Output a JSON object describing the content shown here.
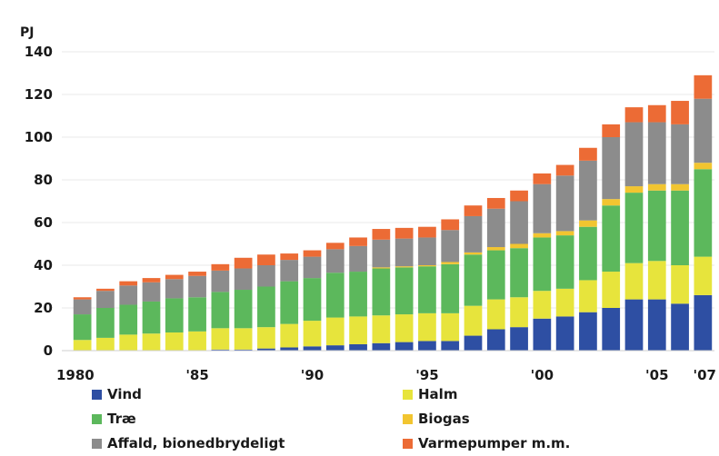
{
  "chart_data": {
    "type": "bar",
    "stacked": true,
    "unit_label": "PJ",
    "title": "",
    "xlabel": "",
    "ylabel": "PJ",
    "ylim": [
      0,
      140
    ],
    "yticks": [
      0,
      20,
      40,
      60,
      80,
      100,
      120,
      140
    ],
    "grid": true,
    "legend_position": "bottom",
    "categories": [
      "1980",
      "1981",
      "1982",
      "1983",
      "1984",
      "1985",
      "1986",
      "1987",
      "1988",
      "1989",
      "1990",
      "1991",
      "1992",
      "1993",
      "1994",
      "1995",
      "1996",
      "1997",
      "1998",
      "1999",
      "2000",
      "2001",
      "2002",
      "2003",
      "2004",
      "2005",
      "2006",
      "2007"
    ],
    "xtick_labels": [
      {
        "category": "1980",
        "label": "1980"
      },
      {
        "category": "1985",
        "label": "'85"
      },
      {
        "category": "1990",
        "label": "'90"
      },
      {
        "category": "1995",
        "label": "'95"
      },
      {
        "category": "2000",
        "label": "'00"
      },
      {
        "category": "2005",
        "label": "'05"
      },
      {
        "category": "2007",
        "label": "'07"
      }
    ],
    "series": [
      {
        "name": "Vind",
        "color": "#2e4fa3",
        "values": [
          0,
          0,
          0,
          0,
          0,
          0,
          0.5,
          0.5,
          1,
          1.5,
          2,
          2.5,
          3,
          3.5,
          4,
          4.5,
          4.5,
          7,
          10,
          11,
          15,
          16,
          18,
          20,
          24,
          24,
          22,
          26
        ]
      },
      {
        "name": "Halm",
        "color": "#e7e43c",
        "values": [
          5,
          6,
          7.5,
          8,
          8.5,
          9,
          10,
          10,
          10,
          11,
          12,
          13,
          13,
          13,
          13,
          13,
          13,
          14,
          14,
          14,
          13,
          13,
          15,
          17,
          17,
          18,
          18,
          18
        ]
      },
      {
        "name": "Træ",
        "color": "#5cb85c",
        "values": [
          12,
          14,
          14,
          15,
          16,
          16,
          17,
          18,
          19,
          20,
          20,
          21,
          21,
          22,
          22,
          22,
          23,
          24,
          23,
          23,
          25,
          25,
          25,
          31,
          33,
          33,
          35,
          41
        ]
      },
      {
        "name": "Biogas",
        "color": "#f2c530",
        "values": [
          0,
          0,
          0,
          0,
          0,
          0,
          0,
          0,
          0,
          0,
          0,
          0,
          0,
          0.5,
          0.5,
          0.5,
          1,
          1,
          1.5,
          2,
          2,
          2,
          3,
          3,
          3,
          3,
          3,
          3
        ]
      },
      {
        "name": "Affald, bionedbrydeligt",
        "color": "#8c8c8c",
        "values": [
          7,
          8,
          9,
          9,
          9,
          10,
          10,
          10,
          10,
          10,
          10,
          11,
          12,
          13,
          13,
          13,
          15,
          17,
          18,
          20,
          23,
          26,
          28,
          29,
          30,
          29,
          28,
          30
        ]
      },
      {
        "name": "Varmepumper m.m.",
        "color": "#ec6b35",
        "values": [
          1,
          1,
          2,
          2,
          2,
          2,
          3,
          5,
          5,
          3,
          3,
          3,
          4,
          5,
          5,
          5,
          5,
          5,
          5,
          5,
          5,
          5,
          6,
          6,
          7,
          8,
          11,
          11
        ]
      }
    ]
  }
}
